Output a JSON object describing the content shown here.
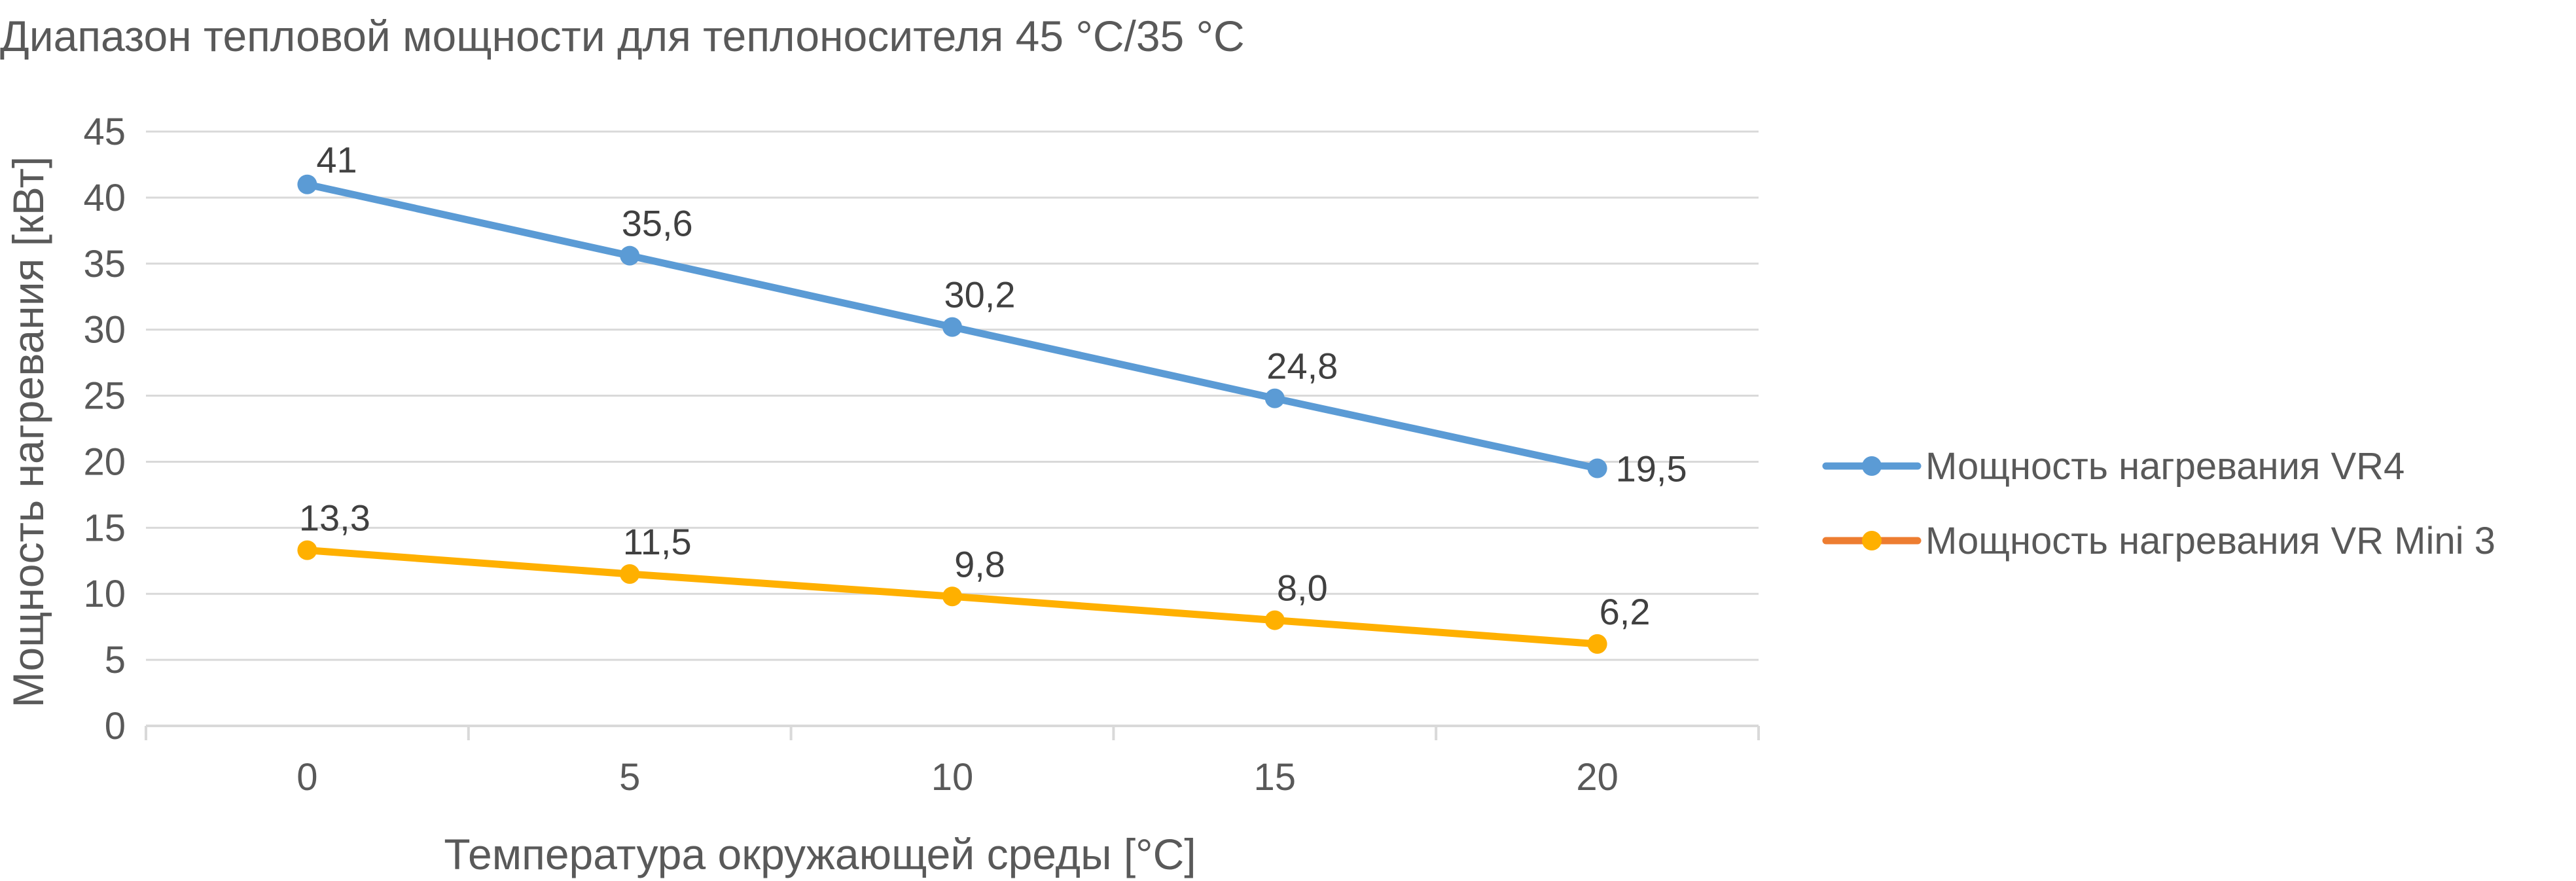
{
  "chart_data": {
    "type": "line",
    "title": "Диапазон тепловой мощности для теплоносителя 45 °C/35 °C",
    "xlabel": "Температура окружающей среды [°C]",
    "ylabel": "Мощность нагревания [кВт]",
    "categories": [
      "0",
      "5",
      "10",
      "15",
      "20"
    ],
    "x": [
      0,
      5,
      10,
      15,
      20
    ],
    "ylim": [
      0,
      45
    ],
    "yticks": [
      "0",
      "5",
      "10",
      "15",
      "20",
      "25",
      "30",
      "35",
      "40",
      "45"
    ],
    "grid": true,
    "legend_position": "right",
    "series": [
      {
        "name": "Мощность нагревания VR4",
        "values": [
          41,
          35.6,
          30.2,
          24.8,
          19.5
        ],
        "labels": [
          "41",
          "35,6",
          "30,2",
          "24,8",
          "19,5"
        ],
        "line_color": "#5b9bd5",
        "marker_color": "#5b9bd5",
        "legend_line_color": "#5b9bd5"
      },
      {
        "name": "Мощность нагревания VR Mini 3",
        "values": [
          13.3,
          11.5,
          9.8,
          8.0,
          6.2
        ],
        "labels": [
          "13,3",
          "11,5",
          "9,8",
          "8,0",
          "6,2"
        ],
        "line_color": "#ffb000",
        "marker_color": "#ffb000",
        "legend_line_color": "#ed7d31"
      }
    ]
  }
}
